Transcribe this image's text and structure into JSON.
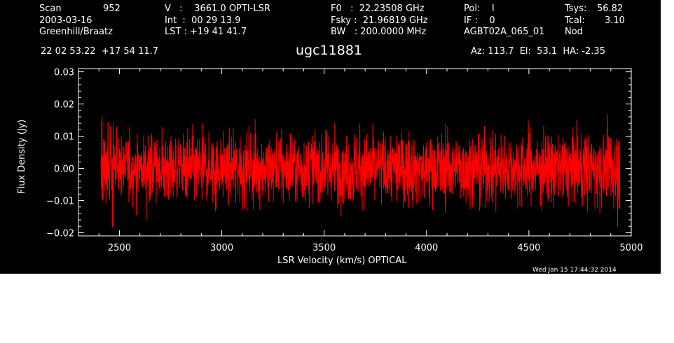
{
  "header": {
    "col1": {
      "scan_label": "Scan",
      "scan_value": "952",
      "date": "2003-03-16",
      "observer": "Greenhill/Braatz"
    },
    "col2": {
      "v_line": "V   :    3661.0 OPTI-LSR",
      "int_line": "Int  :  00 29 13.9",
      "lst_line": "LST : +19 41 41.7"
    },
    "col3": {
      "f0_line": "F0   :  22.23508 GHz",
      "fsky_line": "Fsky :  21.96819 GHz",
      "bw_line": "BW   : 200.0000 MHz"
    },
    "col4": {
      "pol_line": "Pol:    I",
      "if_line": "IF :    0",
      "project": "AGBT02A_065_01"
    },
    "col5": {
      "tsys_label": "Tsys:",
      "tsys_value": "56.82",
      "tcal_label": "Tcal:",
      "tcal_value": "3.10",
      "mode": "Nod"
    },
    "coords": "22 02 53.22  +17 54 11.7",
    "source": "ugc11881",
    "pointing": "Az: 113.7  El:  53.1  HA: -2.35"
  },
  "timestamp": "Wed Jan 15 17:44:32 2014",
  "chart_data": {
    "type": "line",
    "title": "ugc11881",
    "xlabel": "LSR Velocity (km/s) OPTICAL",
    "ylabel": "Flux Density (Jy)",
    "xlim": [
      2300,
      5000
    ],
    "ylim": [
      -0.021,
      0.031
    ],
    "x_ticks": [
      2500,
      3000,
      3500,
      4000,
      4500,
      5000
    ],
    "x_tick_labels": [
      "2500",
      "3000",
      "3500",
      "4000",
      "4500",
      "5000"
    ],
    "y_ticks": [
      -0.02,
      -0.01,
      0.0,
      0.01,
      0.02,
      0.03
    ],
    "y_tick_labels": [
      "−0.02",
      "−0.01",
      "0.00",
      "0.01",
      "0.02",
      "0.03"
    ],
    "grid": false,
    "series": [
      {
        "color": "#ff0000",
        "x_range": [
          2410,
          4945
        ],
        "summary": {
          "mean": 0.0,
          "rms": 0.0055,
          "max": 0.019,
          "min": -0.019
        }
      }
    ]
  },
  "colors": {
    "background": "#000000",
    "axes": "#ffffff",
    "trace": "#ff0000",
    "outside": "#ffffff"
  }
}
